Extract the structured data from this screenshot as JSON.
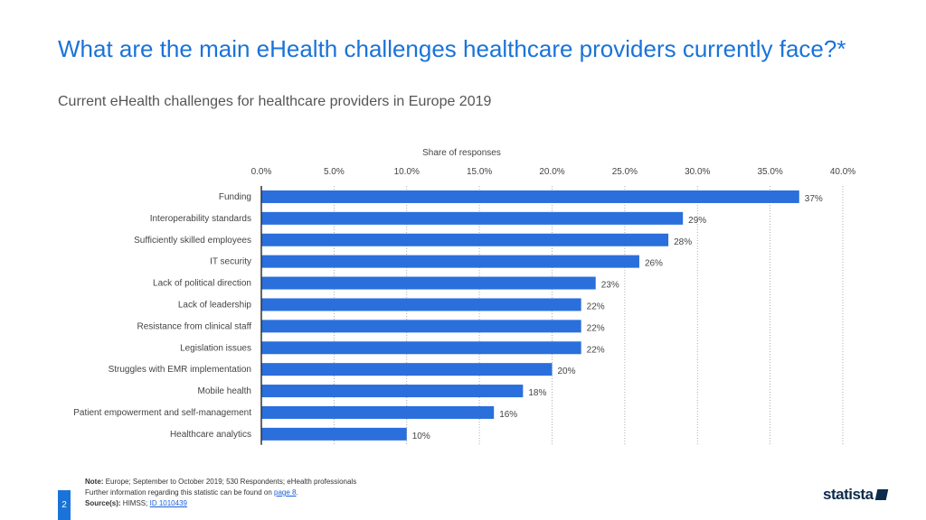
{
  "header": {
    "title": "What are the main eHealth challenges healthcare providers currently face?*",
    "subtitle": "Current eHealth challenges for healthcare providers in Europe 2019"
  },
  "chart_data": {
    "type": "bar",
    "orientation": "horizontal",
    "title": "Share of responses",
    "xlabel": "Share of responses",
    "ylabel": "",
    "xlim": [
      0,
      40
    ],
    "ticks": [
      "0.0%",
      "5.0%",
      "10.0%",
      "15.0%",
      "20.0%",
      "25.0%",
      "30.0%",
      "35.0%",
      "40.0%"
    ],
    "tick_values": [
      0,
      5,
      10,
      15,
      20,
      25,
      30,
      35,
      40
    ],
    "categories": [
      "Funding",
      "Interoperability standards",
      "Sufficiently skilled employees",
      "IT security",
      "Lack of political direction",
      "Lack of leadership",
      "Resistance from clinical staff",
      "Legislation issues",
      "Struggles with EMR implementation",
      "Mobile health",
      "Patient empowerment and self-management",
      "Healthcare analytics"
    ],
    "values": [
      37,
      29,
      28,
      26,
      23,
      22,
      22,
      22,
      20,
      18,
      16,
      10
    ],
    "value_labels": [
      "37%",
      "29%",
      "28%",
      "26%",
      "23%",
      "22%",
      "22%",
      "22%",
      "20%",
      "18%",
      "16%",
      "10%"
    ],
    "bar_color": "#2a6fdb",
    "grid": true
  },
  "footer": {
    "note_label": "Note:",
    "note_text": "Europe; September to October 2019; 530 Respondents; eHealth professionals",
    "info_text": "Further information regarding this statistic can be found on",
    "info_link": "page 8",
    "source_label": "Source(s):",
    "source_text": "HIMSS;",
    "source_link": "ID 1010439",
    "page_number": "2",
    "logo_text": "statista"
  },
  "colors": {
    "accent": "#1a73d9",
    "bar": "#2a6fdb",
    "logo": "#0d2b4a"
  }
}
